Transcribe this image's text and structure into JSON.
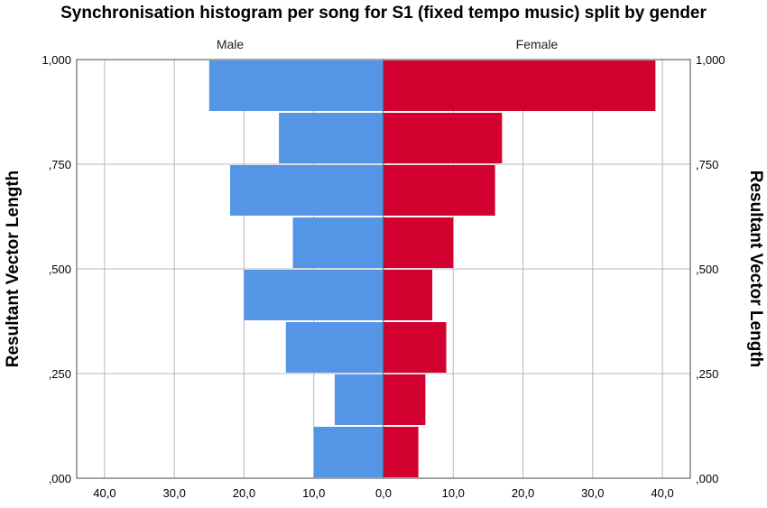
{
  "chart_data": {
    "type": "bar",
    "orientation": "horizontal-population-pyramid",
    "title": "Synchronisation histogram per song for S1 (fixed tempo music) split by gender",
    "ylabel_left": "Resultant Vector Length",
    "ylabel_right": "Resultant Vector Length",
    "y_ticks": [
      ",000",
      ",250",
      ",500",
      ",750",
      "1,000"
    ],
    "y_tick_values": [
      0,
      0.25,
      0.5,
      0.75,
      1.0
    ],
    "ylim": [
      0,
      1.0
    ],
    "bin_edges": [
      0.0,
      0.125,
      0.25,
      0.375,
      0.5,
      0.625,
      0.75,
      0.875,
      1.0
    ],
    "x_ticks_left": [
      "40,0",
      "30,0",
      "20,0",
      "10,0",
      "0,0"
    ],
    "x_ticks_right": [
      "0,0",
      "10,0",
      "20,0",
      "30,0",
      "40,0"
    ],
    "x_tick_values": [
      0,
      10,
      20,
      30,
      40
    ],
    "xlim": [
      0,
      44
    ],
    "grid": true,
    "series": [
      {
        "name": "Male",
        "side": "left",
        "color": "#5595e6",
        "values": [
          10,
          7,
          14,
          20,
          13,
          22,
          15,
          25
        ]
      },
      {
        "name": "Female",
        "side": "right",
        "color": "#d2002f",
        "values": [
          5,
          6,
          9,
          7,
          10,
          16,
          17,
          39
        ]
      }
    ]
  }
}
